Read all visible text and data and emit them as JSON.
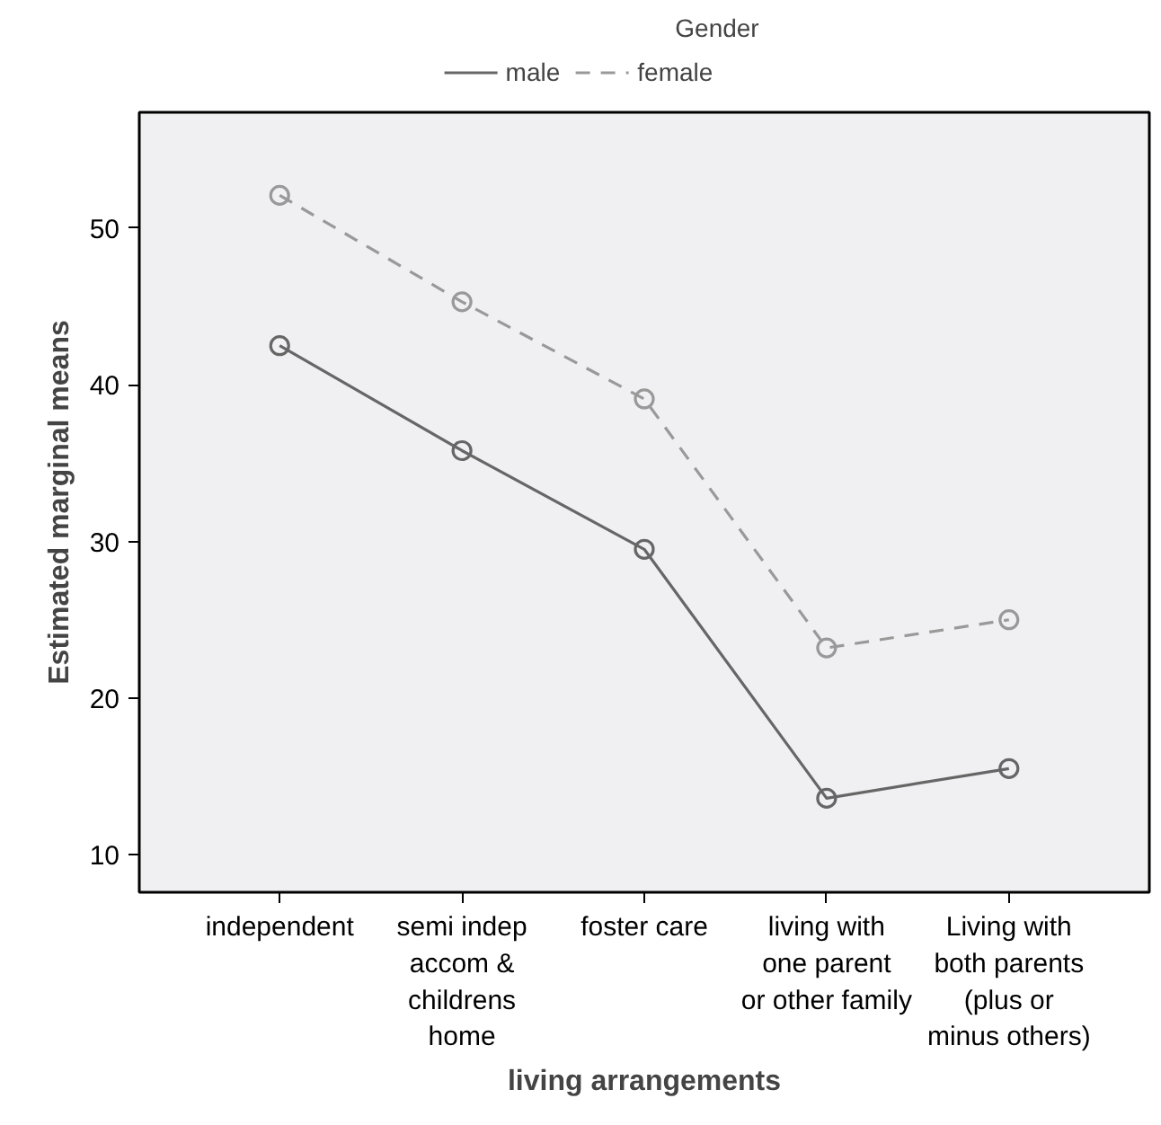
{
  "chart_data": {
    "type": "line",
    "xlabel": "living arrangements",
    "ylabel": "Estimated marginal means",
    "legend_title": "Gender",
    "legend": "top",
    "categories": [
      "independent",
      "semi indep\naccom &\nchildrens\nhome",
      "foster care",
      "living with\none parent\nor other family",
      "Living with\nboth parents\n(plus or\nminus others)"
    ],
    "ylim": [
      7.6,
      57.4
    ],
    "yticks": [
      10,
      20,
      30,
      40,
      50
    ],
    "grid": false,
    "marker": "circle",
    "series": [
      {
        "name": "male",
        "color": "#666666",
        "line_style": "solid",
        "values": [
          42.5,
          35.8,
          29.5,
          13.6,
          15.5
        ]
      },
      {
        "name": "female",
        "color": "#999999",
        "line_style": "dashed",
        "values": [
          52.1,
          45.3,
          39.1,
          23.2,
          25.0
        ]
      }
    ]
  }
}
